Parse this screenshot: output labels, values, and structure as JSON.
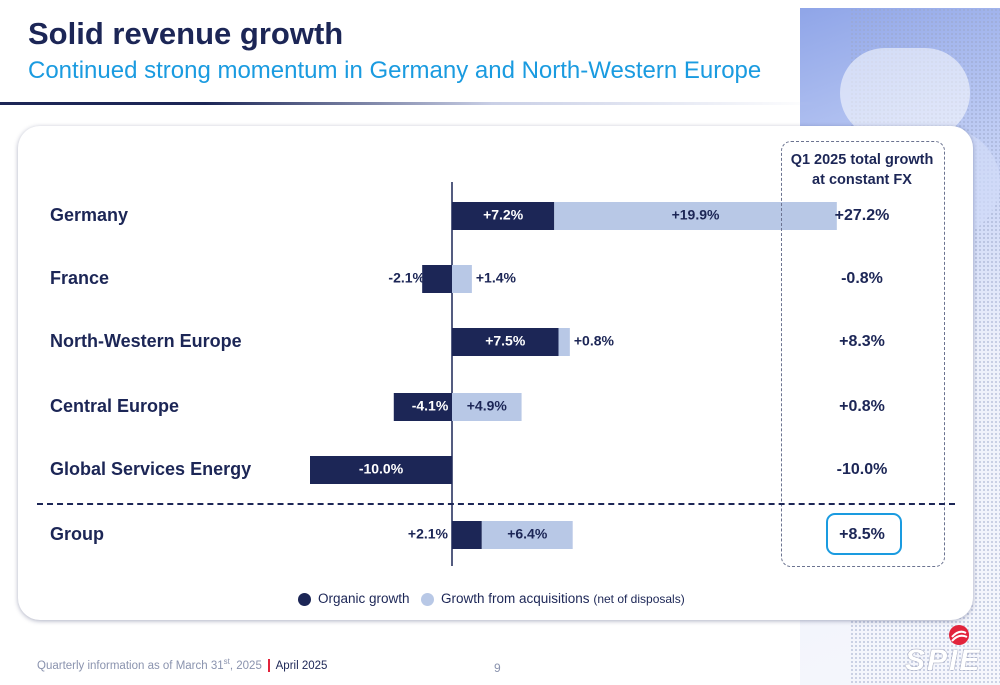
{
  "title": "Solid revenue growth",
  "subtitle": "Continued strong momentum in Germany and North-Western Europe",
  "total_header": [
    "Q1 2025 total growth",
    "at constant FX"
  ],
  "legend": {
    "organic": "Organic growth",
    "acquisitions": "Growth from acquisitions",
    "acquisitions_note": "(net of disposals)"
  },
  "footer": {
    "note_prefix": "Quarterly information as of March 31",
    "note_sup": "st",
    "note_suffix": ", 2025",
    "date": "April 2025",
    "page": "9"
  },
  "logo_text": "SPIE",
  "colors": {
    "organic": "#1c2656",
    "acquisitions": "#b8c8e6",
    "accent": "#1a9be0",
    "text": "#1c2656"
  },
  "chart_data": {
    "type": "bar",
    "orientation": "horizontal",
    "stacked": true,
    "categories": [
      "Germany",
      "France",
      "North-Western Europe",
      "Central Europe",
      "Global Services Energy",
      "Group"
    ],
    "series": [
      {
        "name": "Organic growth",
        "values": [
          7.2,
          -2.1,
          7.5,
          -4.1,
          -10.0,
          2.1
        ],
        "labels": [
          "+7.2%",
          "-2.1%",
          "+7.5%",
          "-4.1%",
          "-10.0%",
          "+2.1%"
        ]
      },
      {
        "name": "Growth from acquisitions (net of disposals)",
        "values": [
          19.9,
          1.4,
          0.8,
          4.9,
          0.0,
          6.4
        ],
        "labels": [
          "+19.9%",
          "+1.4%",
          "+0.8%",
          "+4.9%",
          "",
          "+6.4%"
        ]
      }
    ],
    "totals": {
      "title": "Q1 2025 total growth at constant FX",
      "values": [
        27.2,
        -0.8,
        8.3,
        0.8,
        -10.0,
        8.5
      ],
      "labels": [
        "+27.2%",
        "-0.8%",
        "+8.3%",
        "+0.8%",
        "-10.0%",
        "+8.5%"
      ]
    },
    "grid": false,
    "legend_position": "bottom"
  }
}
